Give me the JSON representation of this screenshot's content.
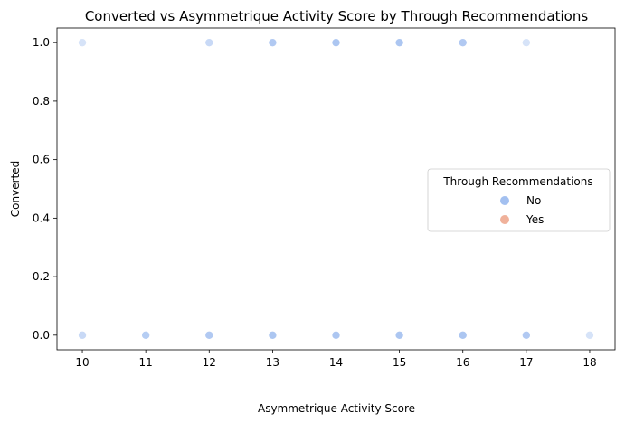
{
  "chart_data": {
    "type": "scatter",
    "title": "Converted vs Asymmetrique Activity Score by Through Recommendations",
    "xlabel": "Asymmetrique Activity Score",
    "ylabel": "Converted",
    "xlim": [
      9.6,
      18.4
    ],
    "ylim": [
      -0.05,
      1.05
    ],
    "xticks": [
      10,
      11,
      12,
      13,
      14,
      15,
      16,
      17,
      18
    ],
    "yticks": [
      0.0,
      0.2,
      0.4,
      0.6,
      0.8,
      1.0
    ],
    "ytick_labels": [
      "0.0",
      "0.2",
      "0.4",
      "0.6",
      "0.8",
      "1.0"
    ],
    "grid": false,
    "legend": {
      "title": "Through Recommendations",
      "placement": "center-right",
      "entries": [
        {
          "label": "No",
          "color": "#a3c0f0"
        },
        {
          "label": "Yes",
          "color": "#f0b19a"
        }
      ]
    },
    "series": [
      {
        "name": "No",
        "color": "#a3c0f0",
        "points": [
          {
            "x": 10,
            "y": 1,
            "opacity": 0.45
          },
          {
            "x": 12,
            "y": 1,
            "opacity": 0.6
          },
          {
            "x": 13,
            "y": 1,
            "opacity": 0.85
          },
          {
            "x": 14,
            "y": 1,
            "opacity": 0.9
          },
          {
            "x": 15,
            "y": 1,
            "opacity": 0.9
          },
          {
            "x": 16,
            "y": 1,
            "opacity": 0.85
          },
          {
            "x": 17,
            "y": 1,
            "opacity": 0.45
          },
          {
            "x": 10,
            "y": 0,
            "opacity": 0.6
          },
          {
            "x": 11,
            "y": 0,
            "opacity": 0.8
          },
          {
            "x": 12,
            "y": 0,
            "opacity": 0.85
          },
          {
            "x": 13,
            "y": 0,
            "opacity": 0.9
          },
          {
            "x": 14,
            "y": 0,
            "opacity": 0.9
          },
          {
            "x": 15,
            "y": 0,
            "opacity": 0.9
          },
          {
            "x": 16,
            "y": 0,
            "opacity": 0.9
          },
          {
            "x": 17,
            "y": 0,
            "opacity": 0.85
          },
          {
            "x": 18,
            "y": 0,
            "opacity": 0.45
          }
        ]
      },
      {
        "name": "Yes",
        "color": "#f0b19a",
        "points": []
      }
    ]
  }
}
